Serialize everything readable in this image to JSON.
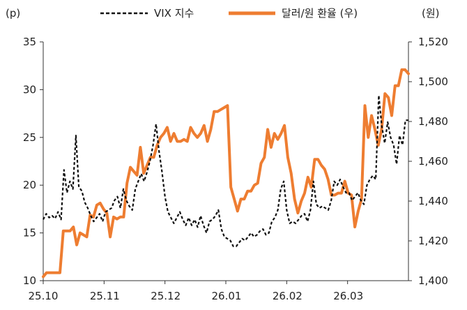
{
  "chart_data": {
    "type": "line",
    "left_unit": "(p)",
    "right_unit": "(원)",
    "y_left": {
      "min": 10,
      "max": 35,
      "ticks": [
        "10",
        "15",
        "20",
        "25",
        "30",
        "35"
      ]
    },
    "y_right": {
      "min": 1400,
      "max": 1520,
      "ticks": [
        "1,400",
        "1,420",
        "1,440",
        "1,460",
        "1,480",
        "1,500",
        "1,520"
      ]
    },
    "x_ticks": [
      "25.10",
      "25.11",
      "25.12",
      "26.01",
      "26.02",
      "26.03"
    ],
    "grid": false,
    "legend_position": "top",
    "series": [
      {
        "name": "VIX 지수",
        "axis": "left",
        "style": "dashed",
        "color": "#111111",
        "values": [
          16.4,
          17.0,
          16.6,
          16.8,
          16.5,
          17.2,
          16.4,
          21.6,
          19.2,
          20.4,
          19.6,
          25.2,
          19.8,
          19.4,
          18.2,
          17.6,
          16.8,
          16.2,
          16.6,
          17.0,
          16.2,
          17.2,
          17.4,
          17.6,
          18.4,
          18.8,
          17.6,
          19.6,
          18.4,
          17.8,
          17.4,
          19.6,
          20.4,
          21.2,
          20.4,
          21.4,
          22.6,
          24.2,
          26.4,
          23.6,
          21.4,
          18.8,
          17.2,
          16.6,
          16.0,
          16.6,
          17.2,
          16.4,
          15.8,
          16.6,
          15.8,
          16.4,
          15.6,
          16.8,
          15.8,
          15.0,
          16.2,
          16.4,
          16.8,
          17.4,
          15.4,
          14.6,
          14.4,
          14.2,
          13.6,
          13.6,
          14.0,
          14.4,
          14.2,
          14.6,
          15.0,
          14.6,
          14.8,
          15.2,
          15.4,
          14.8,
          15.0,
          16.2,
          16.6,
          17.4,
          19.6,
          20.4,
          17.4,
          16.0,
          16.2,
          16.0,
          16.4,
          16.8,
          17.0,
          16.2,
          17.4,
          20.4,
          18.0,
          17.6,
          17.8,
          17.6,
          17.4,
          18.4,
          20.4,
          20.0,
          20.6,
          19.8,
          19.2,
          19.2,
          18.4,
          18.8,
          19.2,
          18.4,
          18.0,
          20.0,
          20.6,
          21.0,
          20.6,
          29.4,
          26.2,
          24.4,
          26.6,
          25.0,
          24.2,
          22.2,
          25.2,
          24.2,
          26.8,
          26.8
        ]
      },
      {
        "name": "달러/원 환율 (우)",
        "axis": "right",
        "style": "solid",
        "color": "#ee7d31",
        "values": [
          1402,
          1404,
          1404,
          1404,
          1404,
          1404,
          1425,
          1425,
          1425,
          1427,
          1418,
          1424,
          1423,
          1422,
          1433,
          1432,
          1438,
          1439,
          1436,
          1434,
          1422,
          1432,
          1431,
          1432,
          1432,
          1449,
          1457,
          1455,
          1453,
          1467,
          1454,
          1458,
          1462,
          1462,
          1468,
          1472,
          1474,
          1477,
          1470,
          1474,
          1470,
          1470,
          1471,
          1470,
          1477,
          1474,
          1472,
          1474,
          1478,
          1470,
          1476,
          1485,
          1485,
          1486,
          1487,
          1488,
          1447,
          1441,
          1435,
          1441,
          1441,
          1445,
          1445,
          1448,
          1449,
          1459,
          1462,
          1476,
          1467,
          1474,
          1471,
          1474,
          1478,
          1462,
          1454,
          1441,
          1434,
          1440,
          1444,
          1452,
          1447,
          1461,
          1461,
          1458,
          1456,
          1451,
          1443,
          1443,
          1444,
          1444,
          1450,
          1444,
          1443,
          1427,
          1435,
          1441,
          1488,
          1472,
          1483,
          1476,
          1468,
          1476,
          1494,
          1492,
          1483,
          1498,
          1498,
          1506,
          1506,
          1504
        ]
      }
    ]
  }
}
